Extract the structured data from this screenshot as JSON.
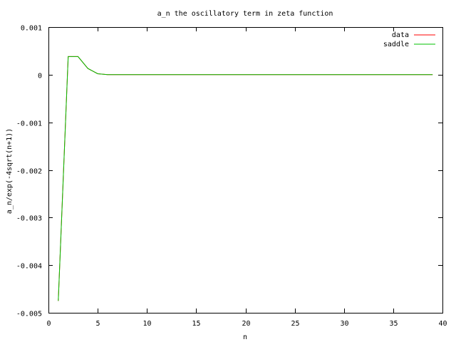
{
  "chart_data": {
    "type": "line",
    "title": "a_n the oscillatory term in zeta function",
    "xlabel": "n",
    "ylabel": "a_n/exp(-4sqrt(n+1))",
    "xlim": [
      0,
      40
    ],
    "ylim": [
      -0.005,
      0.001
    ],
    "x_ticks": [
      0,
      5,
      10,
      15,
      20,
      25,
      30,
      35,
      40
    ],
    "x_tick_labels": [
      "0",
      "5",
      "10",
      "15",
      "20",
      "25",
      "30",
      "35",
      "40"
    ],
    "y_ticks": [
      0.001,
      0,
      -0.001,
      -0.002,
      -0.003,
      -0.004,
      -0.005
    ],
    "y_tick_labels": [
      "0.001",
      "0",
      "-0.001",
      "-0.002",
      "-0.003",
      "-0.004",
      "-0.005"
    ],
    "grid": false,
    "legend_position": "top-right",
    "series": [
      {
        "name": "data",
        "color": "#ff0000",
        "x": [
          1,
          2,
          3,
          4,
          5,
          6,
          7,
          8,
          9,
          10,
          11,
          12,
          13,
          14,
          15,
          16,
          17,
          18,
          19,
          20,
          21,
          22,
          23,
          24,
          25,
          26,
          27,
          28,
          29,
          30,
          31,
          32,
          33,
          34,
          35,
          36,
          37,
          38,
          39
        ],
        "y": [
          -0.00475,
          0.00038,
          0.00038,
          0.00013,
          2e-05,
          0,
          0,
          0,
          0,
          0,
          0,
          0,
          0,
          0,
          0,
          0,
          0,
          0,
          0,
          0,
          0,
          0,
          0,
          0,
          0,
          0,
          0,
          0,
          0,
          0,
          0,
          0,
          0,
          0,
          0,
          0,
          0,
          0,
          0
        ]
      },
      {
        "name": "saddle",
        "color": "#00c000",
        "x": [
          1,
          2,
          3,
          4,
          5,
          6,
          7,
          8,
          9,
          10,
          11,
          12,
          13,
          14,
          15,
          16,
          17,
          18,
          19,
          20,
          21,
          22,
          23,
          24,
          25,
          26,
          27,
          28,
          29,
          30,
          31,
          32,
          33,
          34,
          35,
          36,
          37,
          38,
          39
        ],
        "y": [
          -0.00475,
          0.00038,
          0.00038,
          0.00013,
          2e-05,
          0,
          0,
          0,
          0,
          0,
          0,
          0,
          0,
          0,
          0,
          0,
          0,
          0,
          0,
          0,
          0,
          0,
          0,
          0,
          0,
          0,
          0,
          0,
          0,
          0,
          0,
          0,
          0,
          0,
          0,
          0,
          0,
          0,
          0
        ]
      }
    ]
  }
}
